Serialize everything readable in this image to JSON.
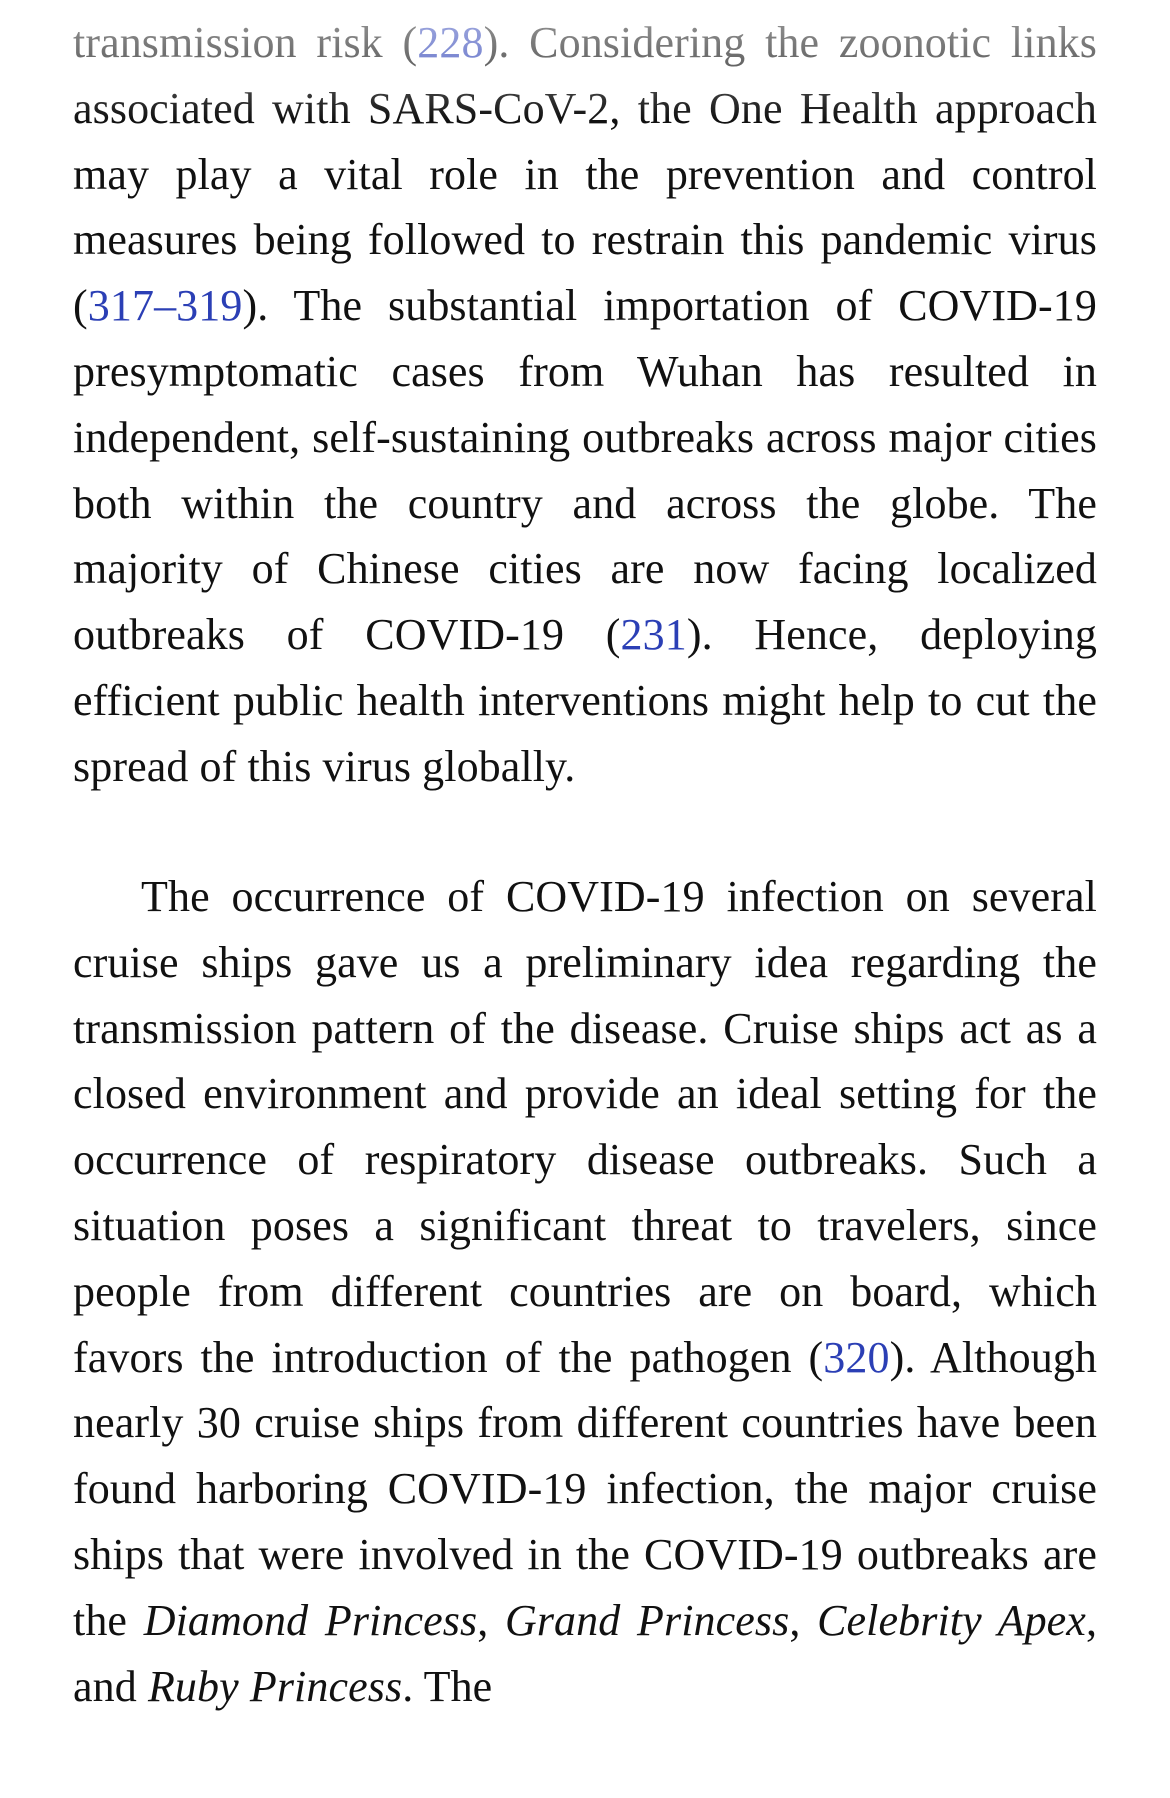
{
  "article": {
    "paragraph1": {
      "t1": "transmission risk (",
      "ref1": "228",
      "t2": "). Considering the zoonotic links associated with SARS-CoV-2, the One Health approach may play a vital role in the prevention and control measures being followed to restrain this pandemic virus (",
      "ref2": "317–319",
      "t3": "). The substantial importation of COVID-19 presymptomatic cases from Wuhan has resulted in independent, self-sustaining outbreaks across major cities both within the country and across the globe. The majority of Chinese cities are now facing localized outbreaks of COVID-19 (",
      "ref3": "231",
      "t4": "). Hence, deploying efficient public health interventions might help to cut the spread of this virus globally."
    },
    "paragraph2": {
      "t1": "The occurrence of COVID-19 infection on several cruise ships gave us a preliminary idea regarding the transmission pattern of the disease. Cruise ships act as a closed environment and provide an ideal setting for the occurrence of respiratory disease outbreaks. Such a situation poses a significant threat to travelers, since people from different countries are on board, which favors the introduction of the pathogen (",
      "ref1": "320",
      "t2": "). Although nearly 30 cruise ships from different countries have been found harboring COVID-19 infection, the major cruise ships that were involved in the COVID-19 outbreaks are the ",
      "ship1": "Diamond Princess",
      "sep1": ", ",
      "ship2": "Grand Princess",
      "sep2": ", ",
      "ship3": "Celebrity Apex",
      "sep3": ", and ",
      "ship4": "Ruby Princess",
      "t3": ". The"
    }
  },
  "colors": {
    "text": "#111111",
    "citation_link": "#2b3fb5",
    "background": "#ffffff"
  }
}
